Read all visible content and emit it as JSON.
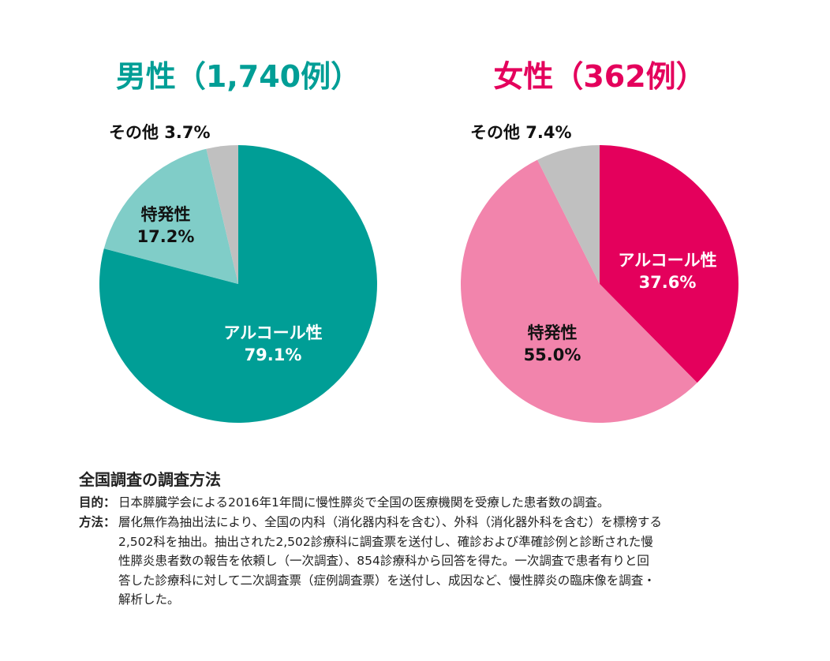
{
  "chart_data": [
    {
      "type": "pie",
      "title": "男性（1,740例）",
      "title_color": "#009e96",
      "slices": [
        {
          "label": "アルコール性",
          "value": 79.1,
          "color": "#009e96"
        },
        {
          "label": "特発性",
          "value": 17.2,
          "color": "#80cdc8"
        },
        {
          "label": "その他",
          "value": 3.7,
          "color": "#c0c0c0"
        }
      ],
      "start": "12 o'clock",
      "direction": "clockwise"
    },
    {
      "type": "pie",
      "title": "女性（362例）",
      "title_color": "#e4005c",
      "slices": [
        {
          "label": "アルコール性",
          "value": 37.6,
          "color": "#e4005c"
        },
        {
          "label": "特発性",
          "value": 55.0,
          "color": "#f284ac"
        },
        {
          "label": "その他",
          "value": 7.4,
          "color": "#c0c0c0"
        }
      ],
      "start": "12 o'clock",
      "direction": "clockwise"
    }
  ],
  "labels": {
    "male": {
      "alcohol": "アルコール性",
      "alcohol_pct": "79.1%",
      "idio": "特発性",
      "idio_pct": "17.2%",
      "other": "その他 3.7%"
    },
    "female": {
      "alcohol": "アルコール性",
      "alcohol_pct": "37.6%",
      "idio": "特発性",
      "idio_pct": "55.0%",
      "other": "その他 7.4%"
    }
  },
  "method": {
    "heading": "全国調査の調査方法",
    "purpose_key": "目的：",
    "purpose": "日本膵臓学会による2016年1年間に慢性膵炎で全国の医療機関を受療した患者数の調査。",
    "method_key": "方法：",
    "method_lines": [
      "層化無作為抽出法により、全国の内科（消化器内科を含む）、外科（消化器外科を含む）を標榜する",
      "2,502科を抽出。抽出された2,502診療科に調査票を送付し、確診および準確診例と診断された慢",
      "性膵炎患者数の報告を依頼し（一次調査）、854診療科から回答を得た。一次調査で患者有りと回",
      "答した診療科に対して二次調査票（症例調査票）を送付し、成因など、慢性膵炎の臨床像を調査・",
      "解析した。"
    ]
  }
}
